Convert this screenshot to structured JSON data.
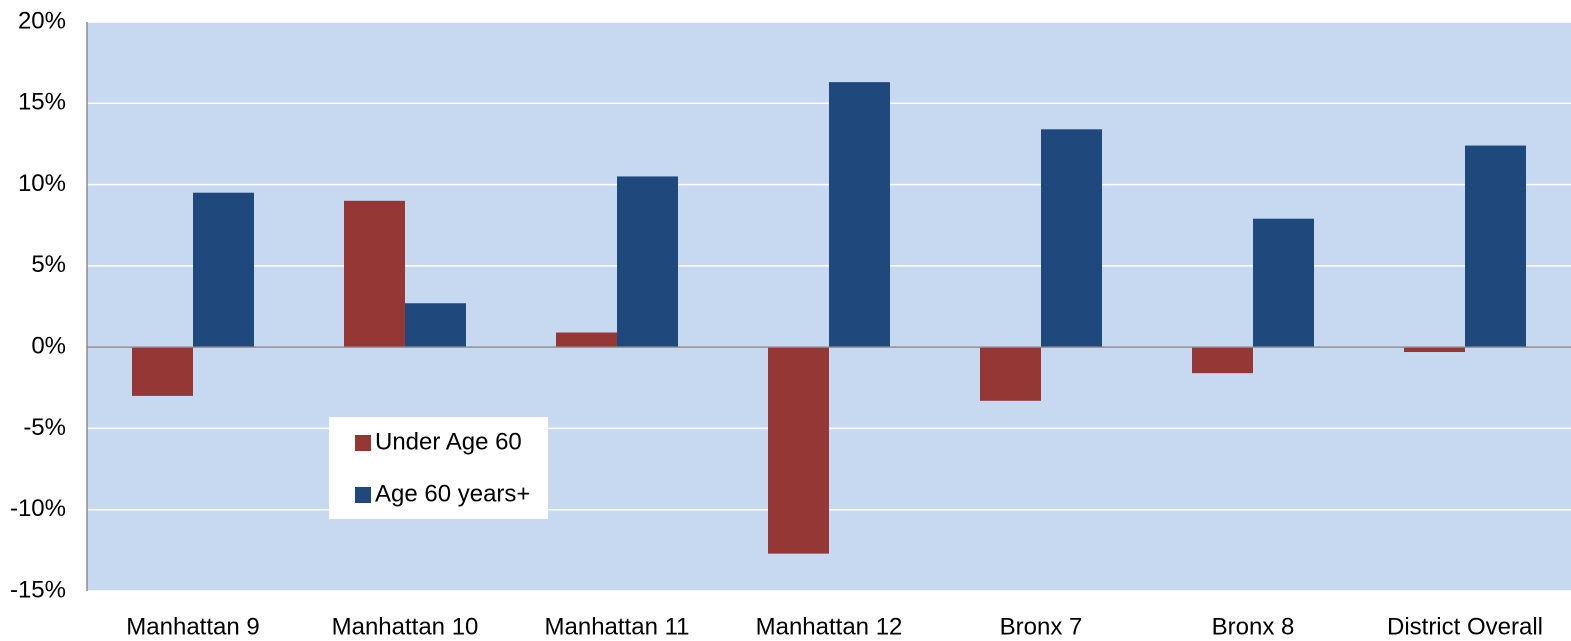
{
  "chart_data": {
    "type": "bar",
    "categories": [
      "Manhattan 9",
      "Manhattan 10",
      "Manhattan 11",
      "Manhattan 12",
      "Bronx 7",
      "Bronx 8",
      "District Overall"
    ],
    "series": [
      {
        "name": "Under Age 60",
        "color": "#953735",
        "values": [
          -3.0,
          9.0,
          0.9,
          -12.7,
          -3.3,
          -1.6,
          -0.3
        ]
      },
      {
        "name": "Age 60 years+",
        "color": "#1f497d",
        "values": [
          9.5,
          2.7,
          10.5,
          16.3,
          13.4,
          7.9,
          12.4
        ]
      }
    ],
    "ylim": [
      -15,
      20
    ],
    "yticks": [
      {
        "value": -15,
        "label": "-15%"
      },
      {
        "value": -10,
        "label": "-10%"
      },
      {
        "value": -5,
        "label": "-5%"
      },
      {
        "value": 0,
        "label": "0%"
      },
      {
        "value": 5,
        "label": "5%"
      },
      {
        "value": 10,
        "label": "10%"
      },
      {
        "value": 15,
        "label": "15%"
      },
      {
        "value": 20,
        "label": "20%"
      }
    ],
    "grid": true,
    "legend": "lower left"
  }
}
